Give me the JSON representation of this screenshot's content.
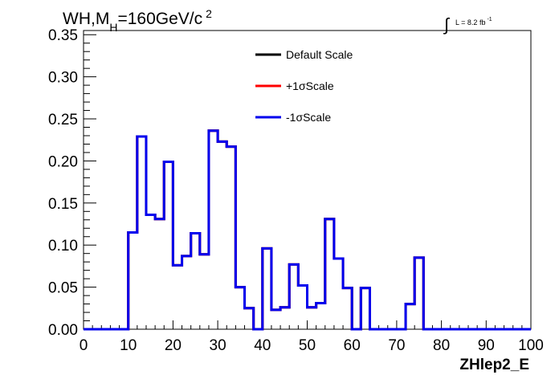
{
  "chart_data": {
    "type": "histogram-step",
    "title_main": "WH,M",
    "title_sub": "H",
    "title_rest": "=160GeV/c",
    "title_sup": "2",
    "lumi_text": "L = 8.2 fb",
    "lumi_sup": "-1",
    "xlabel": "ZHlep2_E",
    "ylabel": "",
    "xlim": [
      0,
      100
    ],
    "ylim": [
      0,
      0.355
    ],
    "xticks": [
      "0",
      "10",
      "20",
      "30",
      "40",
      "50",
      "60",
      "70",
      "80",
      "90",
      "100"
    ],
    "xtick_values": [
      0,
      10,
      20,
      30,
      40,
      50,
      60,
      70,
      80,
      90,
      100
    ],
    "yticks": [
      "0.00",
      "0.05",
      "0.10",
      "0.15",
      "0.20",
      "0.25",
      "0.30",
      "0.35"
    ],
    "ytick_values": [
      0,
      0.05,
      0.1,
      0.15,
      0.2,
      0.25,
      0.3,
      0.35
    ],
    "bin_edges": [
      0,
      2,
      4,
      6,
      8,
      10,
      12,
      14,
      16,
      18,
      20,
      22,
      24,
      26,
      28,
      30,
      32,
      34,
      36,
      38,
      40,
      42,
      44,
      46,
      48,
      50,
      52,
      54,
      56,
      58,
      60,
      62,
      64,
      66,
      68,
      70,
      72,
      74,
      76,
      78,
      80,
      82,
      84,
      86,
      88,
      90,
      92,
      94,
      96,
      98,
      100
    ],
    "series": [
      {
        "name": "Default Scale",
        "color": "#000000",
        "values": [
          0,
          0,
          0,
          0,
          0,
          0.115,
          0.229,
          0.136,
          0.131,
          0.199,
          0.076,
          0.087,
          0.114,
          0.089,
          0.236,
          0.223,
          0.217,
          0.05,
          0.025,
          0,
          0.096,
          0.023,
          0.026,
          0.077,
          0.052,
          0.026,
          0.031,
          0.131,
          0.084,
          0.049,
          0,
          0.049,
          0,
          0,
          0,
          0,
          0.03,
          0.085,
          0,
          0,
          0,
          0,
          0,
          0,
          0,
          0,
          0,
          0,
          0,
          0
        ]
      },
      {
        "name": "+1σScale",
        "color": "#ff0000",
        "values": [
          0,
          0,
          0,
          0,
          0,
          0.115,
          0.229,
          0.136,
          0.131,
          0.199,
          0.076,
          0.087,
          0.114,
          0.089,
          0.236,
          0.223,
          0.217,
          0.05,
          0.025,
          0,
          0.096,
          0.023,
          0.026,
          0.077,
          0.052,
          0.026,
          0.031,
          0.131,
          0.084,
          0.049,
          0,
          0.049,
          0,
          0,
          0,
          0,
          0.03,
          0.085,
          0,
          0,
          0,
          0,
          0,
          0,
          0,
          0,
          0,
          0,
          0,
          0
        ]
      },
      {
        "name": "-1σScale",
        "color": "#0000ee",
        "values": [
          0,
          0,
          0,
          0,
          0,
          0.115,
          0.229,
          0.136,
          0.131,
          0.199,
          0.076,
          0.087,
          0.114,
          0.089,
          0.236,
          0.223,
          0.217,
          0.05,
          0.025,
          0,
          0.096,
          0.023,
          0.026,
          0.077,
          0.052,
          0.026,
          0.031,
          0.131,
          0.084,
          0.049,
          0,
          0.049,
          0,
          0,
          0,
          0,
          0.03,
          0.085,
          0,
          0,
          0,
          0,
          0,
          0,
          0,
          0,
          0,
          0,
          0,
          0
        ]
      }
    ],
    "legend": [
      "Default Scale",
      "+1σScale",
      "-1σScale"
    ],
    "legend_placement": "top-center",
    "grid": false
  }
}
